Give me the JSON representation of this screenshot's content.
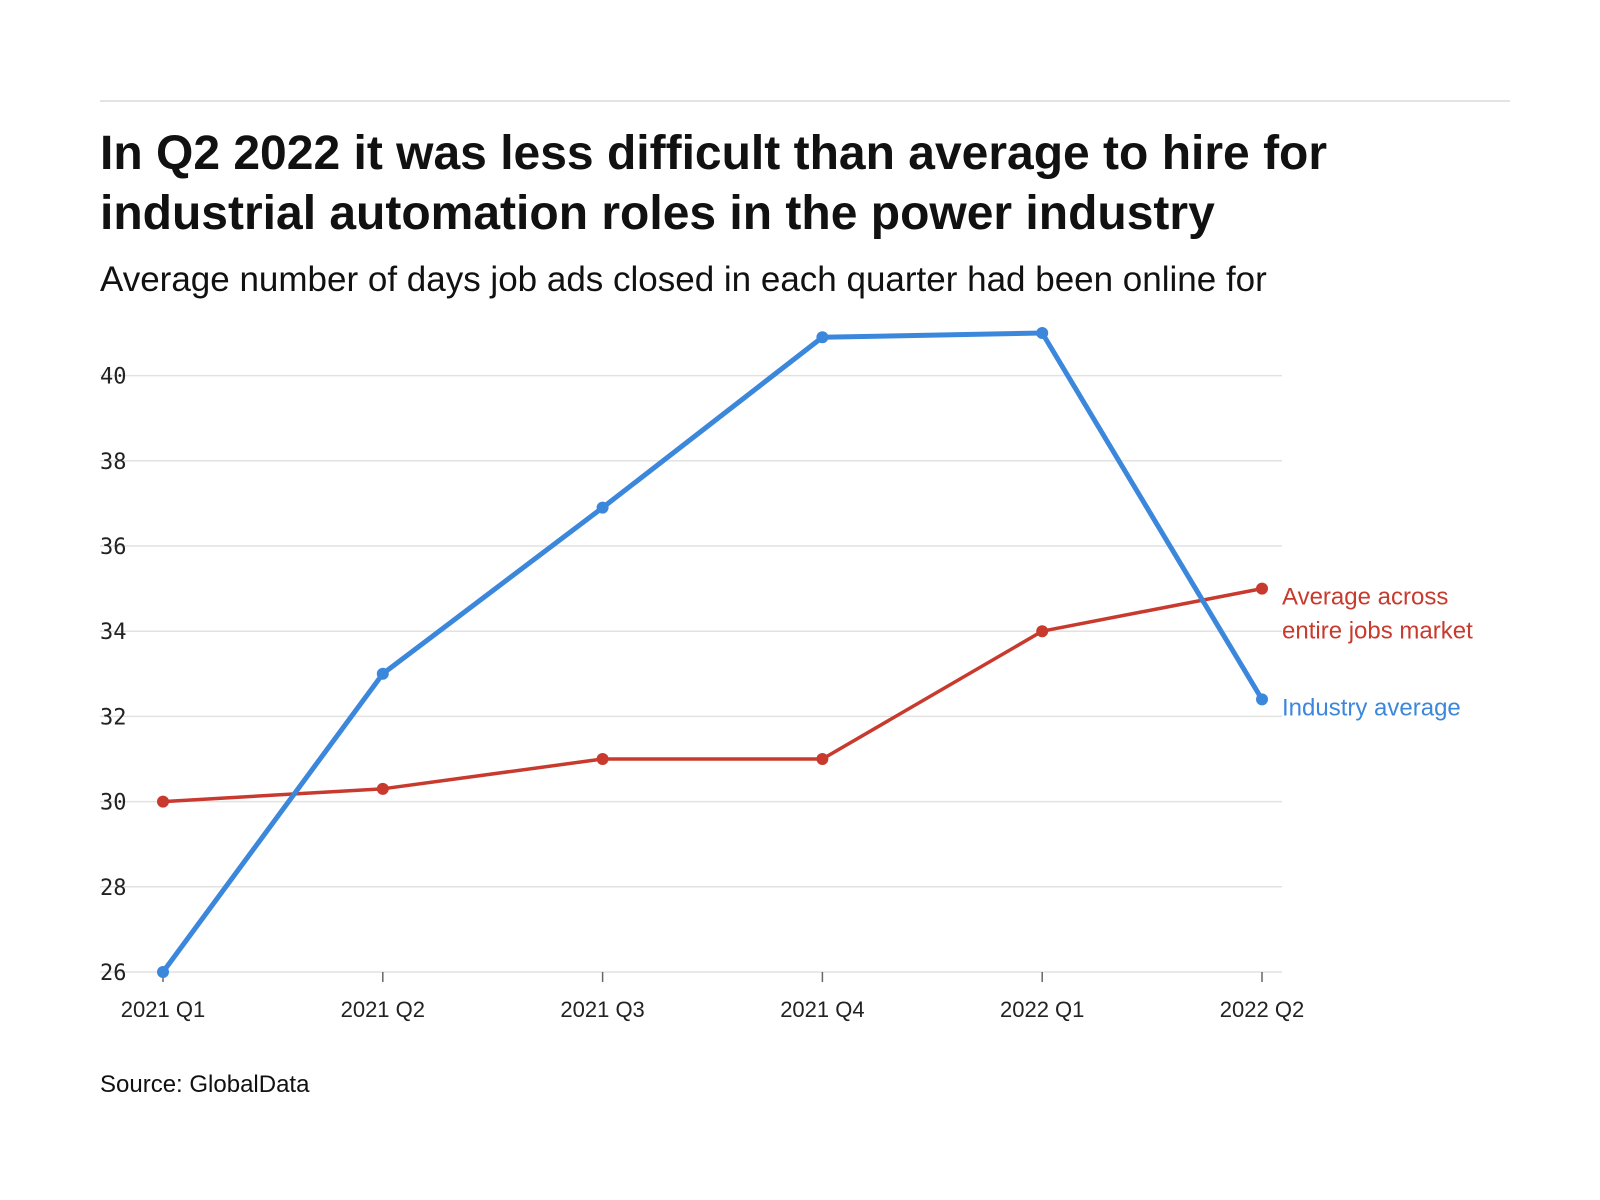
{
  "header": {
    "title": "In Q2 2022 it was less difficult than average to hire for industrial automation roles in the power industry",
    "subtitle": "Average number of days job ads closed in each quarter had been online for"
  },
  "footer": {
    "source": "Source: GlobalData"
  },
  "colors": {
    "industry": "#3b87dc",
    "market": "#c83a2e",
    "grid": "#e2e2e2",
    "axis": "#cccccc"
  },
  "chart_data": {
    "type": "line",
    "title": "In Q2 2022 it was less difficult than average to hire for industrial automation roles in the power industry",
    "subtitle": "Average number of days job ads closed in each quarter had been online for",
    "xlabel": "",
    "ylabel": "",
    "categories": [
      "2021 Q1",
      "2021 Q2",
      "2021 Q3",
      "2021 Q4",
      "2022 Q1",
      "2022 Q2"
    ],
    "ylim": [
      26,
      41
    ],
    "yticks": [
      26,
      28,
      30,
      32,
      34,
      36,
      38,
      40
    ],
    "ytick_labels": [
      "26",
      "28",
      "30",
      "32",
      "34",
      "36",
      "38",
      "40"
    ],
    "grid": true,
    "series": [
      {
        "name": "Industry average",
        "label_lines": [
          "Industry average"
        ],
        "color": "#3b87dc",
        "values": [
          26.0,
          33.0,
          36.9,
          40.9,
          41.0,
          32.4
        ]
      },
      {
        "name": "Average across entire jobs market",
        "label_lines": [
          "Average across",
          "entire jobs market"
        ],
        "color": "#c83a2e",
        "values": [
          30.0,
          30.3,
          31.0,
          31.0,
          34.0,
          35.0
        ]
      }
    ]
  }
}
